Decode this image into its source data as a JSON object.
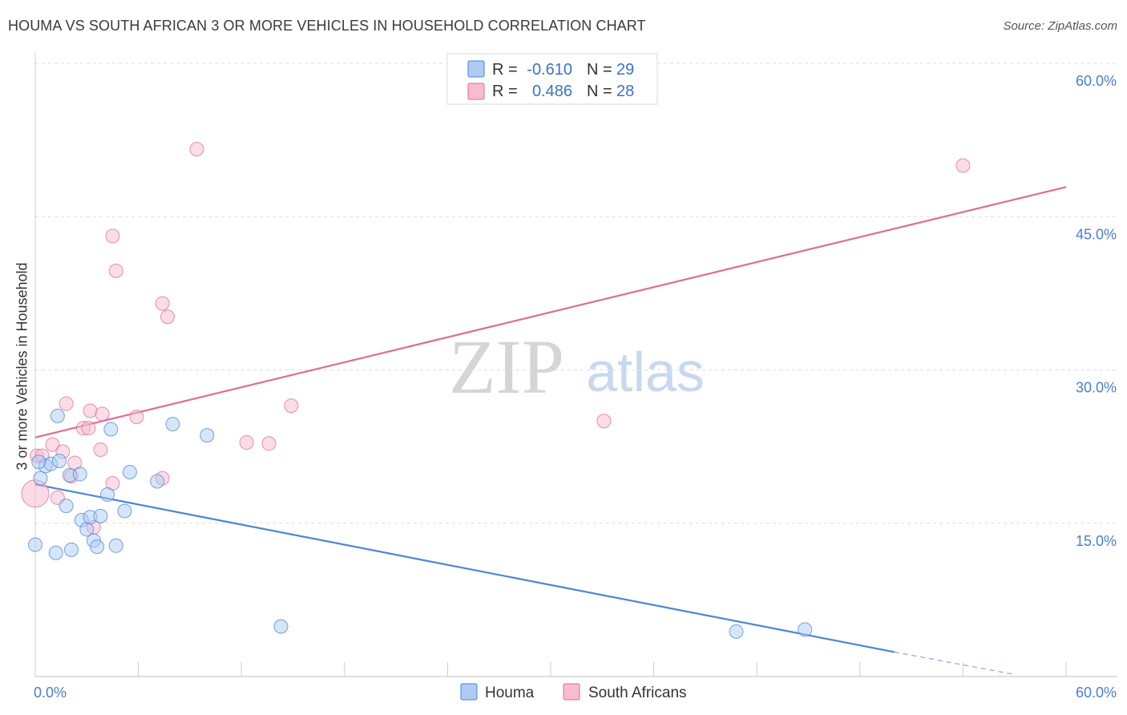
{
  "title": "HOUMA VS SOUTH AFRICAN 3 OR MORE VEHICLES IN HOUSEHOLD CORRELATION CHART",
  "source": "Source: ZipAtlas.com",
  "watermark": {
    "zip": "ZIP",
    "atlas": "atlas"
  },
  "colors": {
    "houma": "#4a86d8",
    "houma_fill": "#aecbf2",
    "south_african": "#e06c94",
    "south_african_fill": "#f6bcd0",
    "tick": "#4a7fd0"
  },
  "legend": {
    "r_label": "R =",
    "n_label": "N =",
    "rows": [
      {
        "series": "Houma",
        "r": "-0.610",
        "n": "29"
      },
      {
        "series": "South Africans",
        "r": "0.486",
        "n": "28"
      }
    ]
  },
  "bottom_legend": [
    "Houma",
    "South Africans"
  ],
  "chart_data": {
    "type": "scatter",
    "title": "HOUMA VS SOUTH AFRICAN 3 OR MORE VEHICLES IN HOUSEHOLD CORRELATION CHART",
    "xlabel": "",
    "ylabel": "3 or more Vehicles in Household",
    "xlim": [
      0,
      60
    ],
    "ylim": [
      0,
      60
    ],
    "x_tick_labels": [
      "0.0%",
      "60.0%"
    ],
    "y_ticks": [
      {
        "value": 15,
        "label": "15.0%"
      },
      {
        "value": 30,
        "label": "30.0%"
      },
      {
        "value": 45,
        "label": "45.0%"
      },
      {
        "value": 60,
        "label": "60.0%"
      }
    ],
    "series": [
      {
        "name": "Houma",
        "r": -0.61,
        "n": 29,
        "points": [
          {
            "x": 0.0,
            "y": 12.9
          },
          {
            "x": 0.3,
            "y": 19.4
          },
          {
            "x": 0.6,
            "y": 20.6
          },
          {
            "x": 0.9,
            "y": 20.8
          },
          {
            "x": 1.2,
            "y": 12.1
          },
          {
            "x": 1.4,
            "y": 21.1
          },
          {
            "x": 1.3,
            "y": 25.5
          },
          {
            "x": 1.8,
            "y": 16.7
          },
          {
            "x": 2.0,
            "y": 19.7
          },
          {
            "x": 2.1,
            "y": 12.4
          },
          {
            "x": 2.6,
            "y": 19.8
          },
          {
            "x": 2.7,
            "y": 15.3
          },
          {
            "x": 3.0,
            "y": 14.4
          },
          {
            "x": 3.2,
            "y": 15.6
          },
          {
            "x": 3.4,
            "y": 13.3
          },
          {
            "x": 3.6,
            "y": 12.7
          },
          {
            "x": 3.8,
            "y": 15.7
          },
          {
            "x": 4.2,
            "y": 17.8
          },
          {
            "x": 4.4,
            "y": 24.2
          },
          {
            "x": 4.7,
            "y": 12.8
          },
          {
            "x": 5.2,
            "y": 16.2
          },
          {
            "x": 5.5,
            "y": 20.0
          },
          {
            "x": 7.1,
            "y": 19.1
          },
          {
            "x": 8.0,
            "y": 24.7
          },
          {
            "x": 10.0,
            "y": 23.6
          },
          {
            "x": 14.3,
            "y": 4.9
          },
          {
            "x": 40.8,
            "y": 4.4
          },
          {
            "x": 44.8,
            "y": 4.6
          },
          {
            "x": 0.2,
            "y": 21.0
          }
        ],
        "trend": {
          "x0": 0,
          "y0": 18.8,
          "x1": 50,
          "y1": 2.4,
          "dash_to_x": 57,
          "dash_to_y": 0.2
        }
      },
      {
        "name": "South Africans",
        "r": 0.486,
        "n": 28,
        "points": [
          {
            "x": 0.0,
            "y": 17.9
          },
          {
            "x": 0.1,
            "y": 21.6
          },
          {
            "x": 0.4,
            "y": 21.6
          },
          {
            "x": 1.0,
            "y": 22.7
          },
          {
            "x": 1.3,
            "y": 17.5
          },
          {
            "x": 1.6,
            "y": 22.0
          },
          {
            "x": 1.8,
            "y": 26.7
          },
          {
            "x": 2.1,
            "y": 19.6
          },
          {
            "x": 2.3,
            "y": 20.9
          },
          {
            "x": 2.8,
            "y": 24.3
          },
          {
            "x": 3.1,
            "y": 24.3
          },
          {
            "x": 3.2,
            "y": 26.0
          },
          {
            "x": 3.4,
            "y": 14.6
          },
          {
            "x": 3.8,
            "y": 22.2
          },
          {
            "x": 3.9,
            "y": 25.7
          },
          {
            "x": 4.5,
            "y": 18.9
          },
          {
            "x": 4.5,
            "y": 43.1
          },
          {
            "x": 4.7,
            "y": 39.7
          },
          {
            "x": 5.9,
            "y": 25.4
          },
          {
            "x": 7.4,
            "y": 19.4
          },
          {
            "x": 7.4,
            "y": 36.5
          },
          {
            "x": 7.7,
            "y": 35.2
          },
          {
            "x": 9.4,
            "y": 51.6
          },
          {
            "x": 12.3,
            "y": 22.9
          },
          {
            "x": 13.6,
            "y": 22.8
          },
          {
            "x": 14.9,
            "y": 26.5
          },
          {
            "x": 33.1,
            "y": 25.0
          },
          {
            "x": 54.0,
            "y": 50.0
          }
        ],
        "trend": {
          "x0": 0,
          "y0": 23.4,
          "x1": 60,
          "y1": 47.9
        }
      }
    ]
  }
}
